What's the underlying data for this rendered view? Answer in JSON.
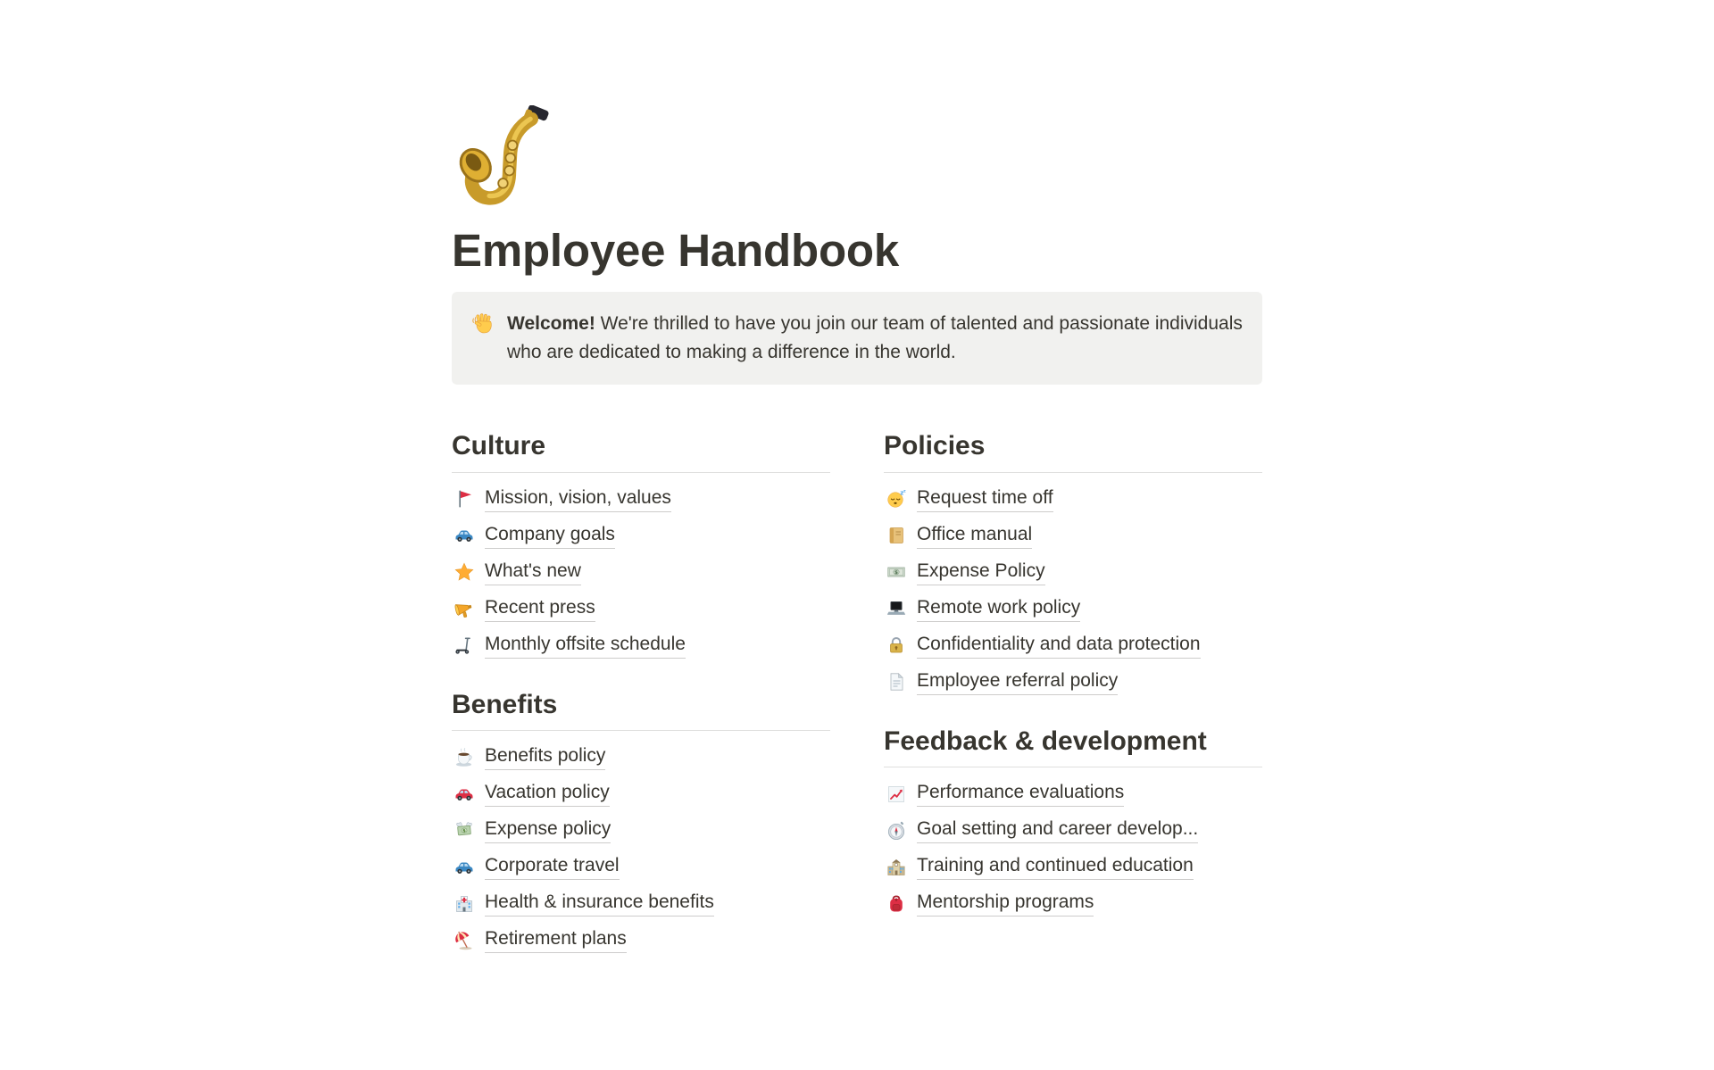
{
  "page": {
    "icon": "saxophone",
    "title": "Employee Handbook"
  },
  "callout": {
    "icon": "waving-hand",
    "lead": "Welcome!",
    "text": "We're thrilled to have you join our team of talented and passionate individuals who are dedicated to making a difference in the world."
  },
  "columns": [
    {
      "sections": [
        {
          "heading": "Culture",
          "items": [
            {
              "icon": "triangular-flag",
              "label": "Mission, vision, values"
            },
            {
              "icon": "blue-car",
              "label": "Company goals"
            },
            {
              "icon": "star",
              "label": "What's new"
            },
            {
              "icon": "megaphone",
              "label": "Recent press"
            },
            {
              "icon": "kick-scooter",
              "label": "Monthly offsite schedule"
            }
          ]
        },
        {
          "heading": "Benefits",
          "items": [
            {
              "icon": "coffee",
              "label": "Benefits policy"
            },
            {
              "icon": "red-car",
              "label": "Vacation policy"
            },
            {
              "icon": "money-with-wings",
              "label": "Expense policy"
            },
            {
              "icon": "blue-car",
              "label": "Corporate travel"
            },
            {
              "icon": "hospital",
              "label": "Health & insurance benefits"
            },
            {
              "icon": "beach-umbrella",
              "label": "Retirement plans"
            }
          ]
        }
      ]
    },
    {
      "sections": [
        {
          "heading": "Policies",
          "items": [
            {
              "icon": "sleeping-face",
              "label": "Request time off"
            },
            {
              "icon": "ledger-book",
              "label": "Office manual"
            },
            {
              "icon": "dollar-banknote",
              "label": "Expense Policy"
            },
            {
              "icon": "laptop",
              "label": "Remote work policy"
            },
            {
              "icon": "lock",
              "label": "Confidentiality and data protection"
            },
            {
              "icon": "page-document",
              "label": "Employee referral policy"
            }
          ]
        },
        {
          "heading": "Feedback & development",
          "items": [
            {
              "icon": "chart-increasing",
              "label": "Performance evaluations"
            },
            {
              "icon": "compass",
              "label": "Goal setting and career develop..."
            },
            {
              "icon": "school",
              "label": "Training and continued education"
            },
            {
              "icon": "backpack",
              "label": "Mentorship programs"
            }
          ]
        }
      ]
    }
  ],
  "colors": {
    "page_background": "#FFFFFF",
    "text": "#37352F",
    "callout_background": "#F1F1EF",
    "divider": "rgba(55,53,47,0.16)",
    "link_underline": "rgba(55,53,47,0.25)"
  }
}
